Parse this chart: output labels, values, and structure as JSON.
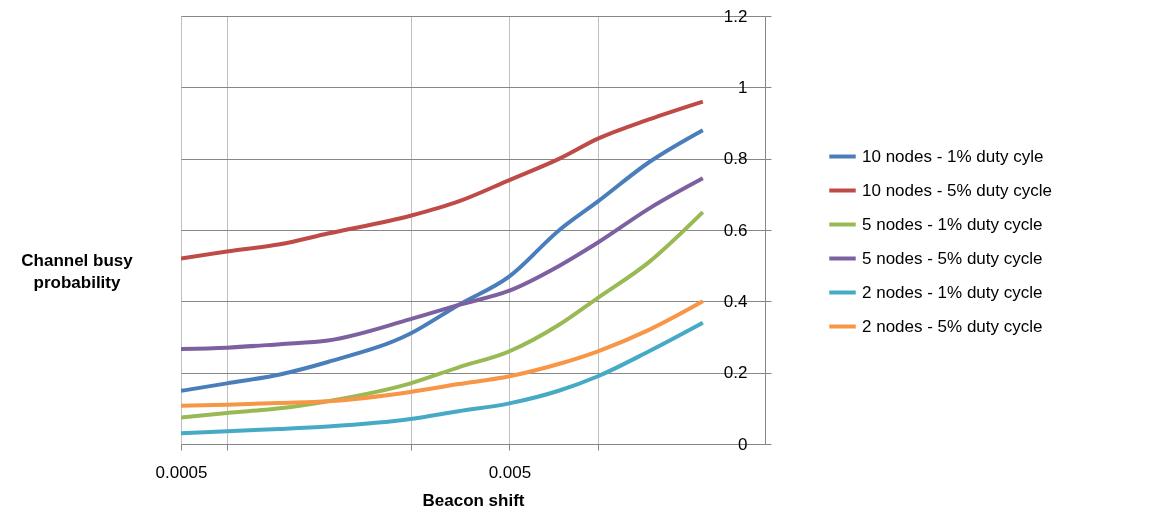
{
  "chart_data": {
    "type": "line",
    "xlabel": "Beacon shift",
    "ylabel": "Channel busy probability",
    "log": "x",
    "xlim": [
      0.0005,
      0.03
    ],
    "xticks": [
      0.0005,
      {
        "value": 0.00069,
        "label": null
      },
      {
        "value": 0.0025,
        "label": null
      },
      0.005,
      {
        "value": 0.0093,
        "label": null
      }
    ],
    "ylim": [
      0,
      1.2
    ],
    "yticks": [
      0,
      0.2,
      0.4,
      0.6,
      0.8,
      1,
      1.2
    ],
    "grid": true,
    "legend": "right",
    "marker": "none",
    "line_style": "solid",
    "x": [
      0.0005,
      0.00069,
      0.001,
      0.0014,
      0.0025,
      0.0035,
      0.005,
      0.0071,
      0.0093,
      0.0133,
      0.0194
    ],
    "series": [
      {
        "name": "10 nodes - 1% duty cyle",
        "color": "#4a7ebb",
        "values": [
          0.149,
          0.17,
          0.195,
          0.23,
          0.31,
          0.39,
          0.47,
          0.6,
          0.68,
          0.79,
          0.88
        ]
      },
      {
        "name": "10 nodes - 5% duty cycle",
        "color": "#be4b48",
        "values": [
          0.52,
          0.54,
          0.56,
          0.59,
          0.64,
          0.68,
          0.74,
          0.8,
          0.856,
          0.91,
          0.96
        ]
      },
      {
        "name": "5 nodes - 1% duty cycle",
        "color": "#98b954",
        "values": [
          0.074,
          0.087,
          0.1,
          0.12,
          0.17,
          0.215,
          0.26,
          0.335,
          0.41,
          0.51,
          0.65
        ]
      },
      {
        "name": "5 nodes - 5% duty cycle",
        "color": "#7d60a0",
        "values": [
          0.266,
          0.27,
          0.28,
          0.29,
          0.35,
          0.39,
          0.43,
          0.5,
          0.565,
          0.66,
          0.745
        ]
      },
      {
        "name": "2 nodes - 1% duty cycle",
        "color": "#46aac5",
        "values": [
          0.03,
          0.036,
          0.042,
          0.049,
          0.07,
          0.092,
          0.114,
          0.15,
          0.19,
          0.26,
          0.34
        ]
      },
      {
        "name": "2 nodes - 5% duty cycle",
        "color": "#f79646",
        "values": [
          0.107,
          0.11,
          0.115,
          0.12,
          0.146,
          0.168,
          0.19,
          0.225,
          0.26,
          0.32,
          0.4
        ]
      }
    ]
  }
}
